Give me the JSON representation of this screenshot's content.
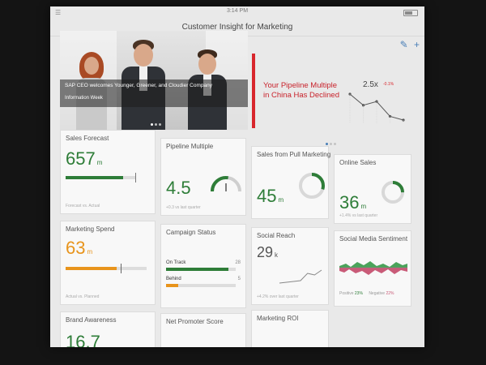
{
  "app": {
    "title": "Customer Insight for Marketing",
    "clock": "3:14 PM"
  },
  "hero": {
    "headline": "SAP CEO welcomes Younger, Greener, and Cloudier Company",
    "source": "Information Week"
  },
  "insight": {
    "message_prefix": "Your ",
    "message_highlight": "Pipeline Multiple",
    "message_suffix": " in China Has Declined",
    "value": "2.5x",
    "delta": "-0.1%",
    "trend": [
      3.2,
      2.9,
      3.0,
      2.6,
      2.5
    ]
  },
  "tiles": {
    "sales_forecast": {
      "title": "Sales Forecast",
      "value": "657",
      "unit": "m",
      "foot": "Forecast vs. Actual",
      "progress": 0.82
    },
    "pipeline_multiple": {
      "title": "Pipeline Multiple",
      "value": "4.5",
      "foot": "+0.3 vs last quarter",
      "gauge": 0.55
    },
    "sales_pull": {
      "title": "Sales from Pull Marketing",
      "value": "45",
      "unit": "m",
      "ring": 0.3
    },
    "online_sales": {
      "title": "Online Sales",
      "value": "36",
      "unit": "m",
      "foot": "+1.4% vs last quarter",
      "ring": 0.25
    },
    "marketing_spend": {
      "title": "Marketing Spend",
      "value": "63",
      "unit": "m",
      "foot": "Actual vs. Planned",
      "progress": 0.63,
      "target": 0.68
    },
    "campaign_status": {
      "title": "Campaign Status",
      "rows": [
        {
          "label": "On Track",
          "count": "28",
          "fraction": 0.9
        },
        {
          "label": "Behind",
          "count": "5",
          "fraction": 0.17
        }
      ]
    },
    "social_reach": {
      "title": "Social Reach",
      "value": "29",
      "unit": "k",
      "foot": "+4.2% over last quarter",
      "trend": [
        1.0,
        1.1,
        1.2,
        1.3,
        2.2,
        2.0,
        2.6
      ]
    },
    "social_sentiment": {
      "title": "Social Media Sentiment",
      "positive_label": "Positive",
      "positive_value": "23%",
      "negative_label": "Negative",
      "negative_value": "22%"
    },
    "brand_awareness": {
      "title": "Brand Awareness",
      "value": "16.7"
    },
    "net_promoter": {
      "title": "Net Promoter Score"
    },
    "marketing_roi": {
      "title": "Marketing ROI"
    }
  },
  "colors": {
    "green": "#2e7d38",
    "orange": "#e8941c",
    "red": "#d8262c",
    "blue": "#4a7fb7"
  }
}
